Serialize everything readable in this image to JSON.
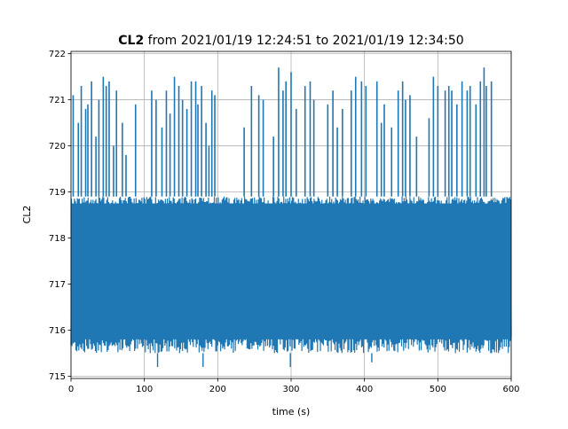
{
  "chart_data": {
    "type": "line",
    "title_bold": "CL2",
    "title_rest": " from 2021/01/19 12:24:51 to 2021/01/19 12:34:50",
    "xlabel": "time (s)",
    "ylabel": "CL2",
    "xlim": [
      0,
      600
    ],
    "ylim": [
      714.95,
      722.05
    ],
    "xticks": [
      0,
      100,
      200,
      300,
      400,
      500,
      600
    ],
    "yticks": [
      715,
      716,
      717,
      718,
      719,
      720,
      721,
      722
    ],
    "grid": true,
    "legend": "none",
    "series": [
      {
        "color": "#1f77b4",
        "x_start": 0,
        "x_end": 600,
        "typical_range": [
          715.5,
          718.9
        ],
        "spike_x": [
          3,
          10,
          14,
          20,
          23,
          28,
          34,
          38,
          44,
          48,
          52,
          58,
          62,
          70,
          75,
          88,
          110,
          116,
          124,
          130,
          135,
          141,
          147,
          152,
          158,
          164,
          170,
          173,
          178,
          184,
          188,
          192,
          196,
          236,
          246,
          256,
          262,
          276,
          283,
          289,
          293,
          300,
          307,
          319,
          326,
          331,
          350,
          357,
          363,
          370,
          382,
          388,
          396,
          402,
          417,
          423,
          427,
          437,
          446,
          452,
          456,
          462,
          471,
          488,
          494,
          500,
          510,
          515,
          519,
          526,
          533,
          540,
          544,
          552,
          558,
          563,
          566,
          573
        ],
        "spike_y": [
          721.1,
          720.5,
          721.3,
          720.8,
          720.9,
          721.4,
          720.2,
          721.0,
          721.5,
          721.3,
          721.4,
          720.0,
          721.2,
          720.5,
          719.8,
          720.9,
          721.2,
          721.0,
          720.4,
          721.2,
          720.7,
          721.5,
          721.3,
          721.0,
          720.8,
          721.4,
          721.4,
          720.9,
          721.3,
          720.5,
          720.0,
          721.2,
          721.1,
          720.4,
          721.3,
          721.1,
          721.0,
          720.2,
          721.7,
          721.2,
          721.4,
          721.6,
          720.8,
          721.3,
          721.4,
          721.0,
          720.9,
          721.2,
          720.4,
          720.8,
          721.2,
          721.5,
          721.4,
          721.3,
          721.4,
          720.5,
          720.9,
          720.4,
          721.2,
          721.4,
          721.0,
          721.1,
          720.2,
          720.6,
          721.5,
          721.3,
          721.2,
          721.3,
          721.2,
          720.9,
          721.4,
          721.2,
          721.3,
          720.9,
          721.4,
          721.7,
          721.3,
          721.4
        ],
        "dip_x": [
          2,
          8,
          18,
          24,
          37,
          46,
          58,
          64,
          73,
          82,
          95,
          106,
          118,
          132,
          147,
          160,
          180,
          190,
          212,
          232,
          258,
          278,
          299,
          320,
          341,
          365,
          390,
          392,
          410,
          430,
          453,
          470,
          489,
          512,
          534,
          550,
          568,
          592
        ],
        "dip_y": [
          715.5,
          715.5,
          715.6,
          715.5,
          715.5,
          715.5,
          715.5,
          715.5,
          715.5,
          715.5,
          715.5,
          715.5,
          715.2,
          715.5,
          715.5,
          715.5,
          715.2,
          715.5,
          715.5,
          715.5,
          715.5,
          715.5,
          715.2,
          715.5,
          715.5,
          715.5,
          715.5,
          715.5,
          715.3,
          715.5,
          715.5,
          715.5,
          715.5,
          715.5,
          715.6,
          715.6,
          715.5,
          715.5
        ]
      }
    ]
  }
}
